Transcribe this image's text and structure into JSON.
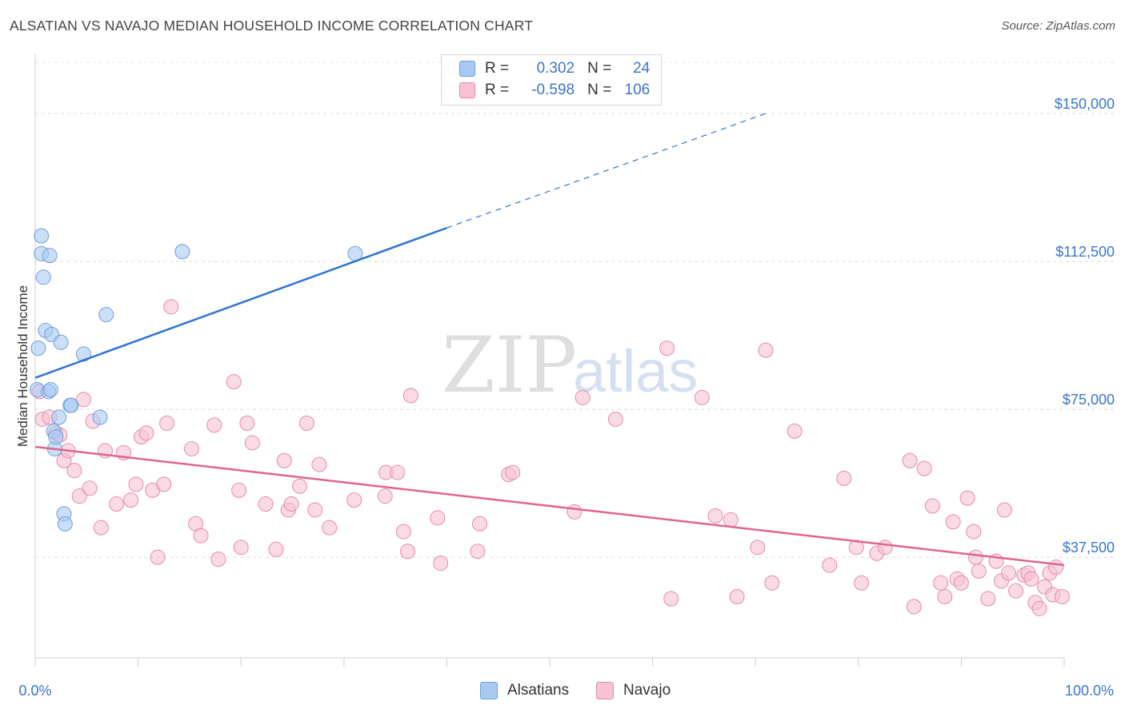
{
  "title": "ALSATIAN VS NAVAJO MEDIAN HOUSEHOLD INCOME CORRELATION CHART",
  "source": "Source: ZipAtlas.com",
  "watermark": {
    "zip": "ZIP",
    "atlas": "atlas"
  },
  "legend": {
    "rows": [
      {
        "r_label": "R =",
        "r_value": "0.302",
        "n_label": "N =",
        "n_value": "24"
      },
      {
        "r_label": "R =",
        "r_value": "-0.598",
        "n_label": "N =",
        "n_value": "106"
      }
    ],
    "bottom": [
      "Alsatians",
      "Navajo"
    ]
  },
  "colors": {
    "alsatians_fill": "#a9c9f3",
    "alsatians_stroke": "#6f9fdb",
    "alsatians_line": "#2f73d3",
    "navajo_fill": "#f7c3d3",
    "navajo_stroke": "#e48aa9",
    "navajo_line": "#e0648f",
    "axis_label": "#3a74cc"
  },
  "chart_data": {
    "type": "scatter",
    "title": "ALSATIAN VS NAVAJO MEDIAN HOUSEHOLD INCOME CORRELATION CHART",
    "xlabel": "",
    "ylabel": "Median Household Income",
    "x_unit": "%",
    "xlim": [
      0,
      100
    ],
    "ylim": [
      12000,
      165000
    ],
    "x_tick_labels": [
      "0.0%",
      "100.0%"
    ],
    "y_ticks": [
      37500,
      75000,
      112500,
      150000
    ],
    "y_tick_labels": [
      "$37,500",
      "$75,000",
      "$112,500",
      "$150,000"
    ],
    "grid": true,
    "legend_position": "top-center",
    "series": [
      {
        "name": "Alsatians",
        "r": 0.302,
        "n": 24,
        "trend": {
          "x0": 0,
          "y0": 83000,
          "x1": 40,
          "y1": 121000,
          "dashed_to_x": 71,
          "dashed_to_y": 150000
        },
        "points": [
          [
            0.2,
            80000
          ],
          [
            0.3,
            90500
          ],
          [
            0.6,
            119000
          ],
          [
            0.6,
            114500
          ],
          [
            0.8,
            108500
          ],
          [
            1.0,
            95000
          ],
          [
            1.3,
            79500
          ],
          [
            1.4,
            114000
          ],
          [
            1.5,
            80000
          ],
          [
            1.6,
            94000
          ],
          [
            1.8,
            69500
          ],
          [
            1.9,
            65000
          ],
          [
            2.0,
            68000
          ],
          [
            2.3,
            73000
          ],
          [
            2.5,
            92000
          ],
          [
            2.8,
            48500
          ],
          [
            2.9,
            46000
          ],
          [
            3.4,
            76000
          ],
          [
            3.5,
            76000
          ],
          [
            4.7,
            89000
          ],
          [
            6.3,
            73000
          ],
          [
            6.9,
            99000
          ],
          [
            14.3,
            115000
          ],
          [
            31.1,
            114500
          ]
        ]
      },
      {
        "name": "Navajo",
        "r": -0.598,
        "n": 106,
        "trend": {
          "x0": 0,
          "y0": 65500,
          "x1": 100,
          "y1": 35500
        },
        "points": [
          [
            0.4,
            79500
          ],
          [
            0.7,
            72500
          ],
          [
            1.4,
            73000
          ],
          [
            2.0,
            69000
          ],
          [
            2.4,
            68500
          ],
          [
            2.8,
            62000
          ],
          [
            3.2,
            64500
          ],
          [
            3.8,
            59500
          ],
          [
            4.3,
            53000
          ],
          [
            4.7,
            77500
          ],
          [
            5.3,
            55000
          ],
          [
            5.6,
            72000
          ],
          [
            6.4,
            45000
          ],
          [
            6.8,
            64500
          ],
          [
            7.9,
            51000
          ],
          [
            8.6,
            64000
          ],
          [
            9.3,
            52000
          ],
          [
            9.8,
            56000
          ],
          [
            10.3,
            68000
          ],
          [
            10.8,
            69000
          ],
          [
            11.4,
            54500
          ],
          [
            11.9,
            37500
          ],
          [
            12.5,
            56000
          ],
          [
            12.8,
            71500
          ],
          [
            13.2,
            101000
          ],
          [
            15.2,
            65000
          ],
          [
            15.6,
            46000
          ],
          [
            16.1,
            43000
          ],
          [
            17.4,
            71000
          ],
          [
            17.8,
            37000
          ],
          [
            19.3,
            82000
          ],
          [
            19.8,
            54500
          ],
          [
            20.0,
            40000
          ],
          [
            20.6,
            71500
          ],
          [
            21.1,
            66500
          ],
          [
            22.4,
            51000
          ],
          [
            23.4,
            39500
          ],
          [
            24.2,
            62000
          ],
          [
            24.6,
            49500
          ],
          [
            24.9,
            51000
          ],
          [
            25.7,
            55500
          ],
          [
            26.4,
            71500
          ],
          [
            27.2,
            49500
          ],
          [
            27.6,
            61000
          ],
          [
            28.6,
            45000
          ],
          [
            31.0,
            52000
          ],
          [
            34.0,
            53000
          ],
          [
            34.1,
            59000
          ],
          [
            35.2,
            59000
          ],
          [
            35.8,
            44000
          ],
          [
            36.2,
            39000
          ],
          [
            36.5,
            78500
          ],
          [
            39.1,
            47500
          ],
          [
            39.4,
            36000
          ],
          [
            43.0,
            39000
          ],
          [
            43.2,
            46000
          ],
          [
            46.0,
            58500
          ],
          [
            46.4,
            59000
          ],
          [
            52.4,
            49000
          ],
          [
            53.2,
            78000
          ],
          [
            56.4,
            72500
          ],
          [
            61.4,
            90500
          ],
          [
            61.8,
            27000
          ],
          [
            64.8,
            78000
          ],
          [
            66.1,
            48000
          ],
          [
            67.6,
            47000
          ],
          [
            68.2,
            27500
          ],
          [
            70.2,
            40000
          ],
          [
            71.0,
            90000
          ],
          [
            71.6,
            31000
          ],
          [
            73.8,
            69500
          ],
          [
            77.2,
            35500
          ],
          [
            78.6,
            57500
          ],
          [
            79.8,
            40000
          ],
          [
            80.3,
            31000
          ],
          [
            81.8,
            38500
          ],
          [
            82.6,
            40000
          ],
          [
            85.0,
            62000
          ],
          [
            85.4,
            25000
          ],
          [
            86.4,
            60000
          ],
          [
            87.2,
            50500
          ],
          [
            88.0,
            31000
          ],
          [
            88.4,
            27500
          ],
          [
            89.2,
            46500
          ],
          [
            89.6,
            32000
          ],
          [
            90.0,
            31000
          ],
          [
            90.6,
            52500
          ],
          [
            91.2,
            44000
          ],
          [
            91.4,
            37500
          ],
          [
            91.7,
            34000
          ],
          [
            92.6,
            27000
          ],
          [
            93.4,
            36500
          ],
          [
            93.9,
            31500
          ],
          [
            94.2,
            49500
          ],
          [
            94.6,
            33500
          ],
          [
            95.3,
            29000
          ],
          [
            96.1,
            33000
          ],
          [
            96.5,
            33500
          ],
          [
            96.8,
            32000
          ],
          [
            97.2,
            26000
          ],
          [
            97.6,
            24500
          ],
          [
            98.1,
            30000
          ],
          [
            98.6,
            33500
          ],
          [
            98.9,
            28000
          ],
          [
            99.2,
            35000
          ],
          [
            99.8,
            27500
          ]
        ]
      }
    ]
  }
}
